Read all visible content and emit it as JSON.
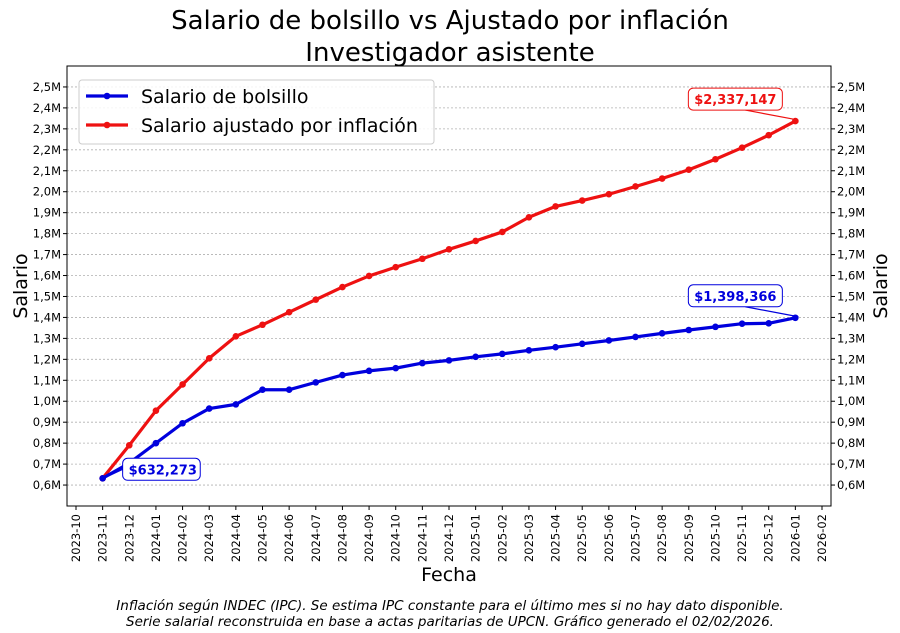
{
  "title_line1": "Salario de bolsillo vs Ajustado por inflación",
  "title_line2": "Investigador asistente",
  "footnote_line1": "Inflación según INDEC (IPC). Se estima IPC constante para el último mes si no hay dato disponible.",
  "footnote_line2": "Serie salarial reconstruida en base a actas paritarias de UPCN. Gráfico generado el 02/02/2026.",
  "chart_data": {
    "type": "line",
    "xlabel": "Fecha",
    "ylabel": "Salario",
    "ylabel_right": "Salario",
    "ylim": [
      500000,
      2600000
    ],
    "y_ticks": [
      600000,
      700000,
      800000,
      900000,
      1000000,
      1100000,
      1200000,
      1300000,
      1400000,
      1500000,
      1600000,
      1700000,
      1800000,
      1900000,
      2000000,
      2100000,
      2200000,
      2300000,
      2400000,
      2500000
    ],
    "y_tick_labels": [
      "0,6M",
      "0,7M",
      "0,8M",
      "0,9M",
      "1,0M",
      "1,1M",
      "1,2M",
      "1,3M",
      "1,4M",
      "1,5M",
      "1,6M",
      "1,7M",
      "1,8M",
      "1,9M",
      "2,0M",
      "2,1M",
      "2,2M",
      "2,3M",
      "2,4M",
      "2,5M"
    ],
    "x_tick_labels": [
      "2023-10",
      "2023-11",
      "2023-12",
      "2024-01",
      "2024-02",
      "2024-03",
      "2024-04",
      "2024-05",
      "2024-06",
      "2024-07",
      "2024-08",
      "2024-09",
      "2024-10",
      "2024-11",
      "2024-12",
      "2025-01",
      "2025-02",
      "2025-03",
      "2025-04",
      "2025-05",
      "2025-06",
      "2025-07",
      "2025-08",
      "2025-09",
      "2025-10",
      "2025-11",
      "2025-12",
      "2026-01",
      "2026-02"
    ],
    "x_range": [
      "2023-10",
      "2026-02"
    ],
    "x": [
      "2023-11",
      "2023-12",
      "2024-01",
      "2024-02",
      "2024-03",
      "2024-04",
      "2024-05",
      "2024-06",
      "2024-07",
      "2024-08",
      "2024-09",
      "2024-10",
      "2024-11",
      "2024-12",
      "2025-01",
      "2025-02",
      "2025-03",
      "2025-04",
      "2025-05",
      "2025-06",
      "2025-07",
      "2025-08",
      "2025-09",
      "2025-10",
      "2025-11",
      "2025-12",
      "2026-01"
    ],
    "series": [
      {
        "name": "Salario de bolsillo",
        "color": "#0000dd",
        "values": [
          632273,
          705000,
          800000,
          895000,
          965000,
          985000,
          1055000,
          1055000,
          1090000,
          1125000,
          1145000,
          1158000,
          1182000,
          1195000,
          1212000,
          1226000,
          1243000,
          1258000,
          1274000,
          1290000,
          1307000,
          1324000,
          1340000,
          1355000,
          1370000,
          1372000,
          1398366
        ]
      },
      {
        "name": "Salario ajustado por inflación",
        "color": "#ee1111",
        "values": [
          632273,
          790000,
          955000,
          1080000,
          1205000,
          1310000,
          1365000,
          1425000,
          1485000,
          1545000,
          1598000,
          1640000,
          1680000,
          1725000,
          1765000,
          1808000,
          1878000,
          1930000,
          1958000,
          1988000,
          2025000,
          2063000,
          2105000,
          2155000,
          2210000,
          2270000,
          2337147
        ]
      }
    ],
    "annotations": [
      {
        "text": "$632,273",
        "x": "2023-11",
        "y": 632273,
        "color": "#0000dd"
      },
      {
        "text": "$1,398,366",
        "x": "2026-01",
        "y": 1398366,
        "color": "#0000dd"
      },
      {
        "text": "$2,337,147",
        "x": "2026-01",
        "y": 2337147,
        "color": "#ee1111"
      }
    ],
    "grid": true,
    "legend_position": "top-left"
  }
}
